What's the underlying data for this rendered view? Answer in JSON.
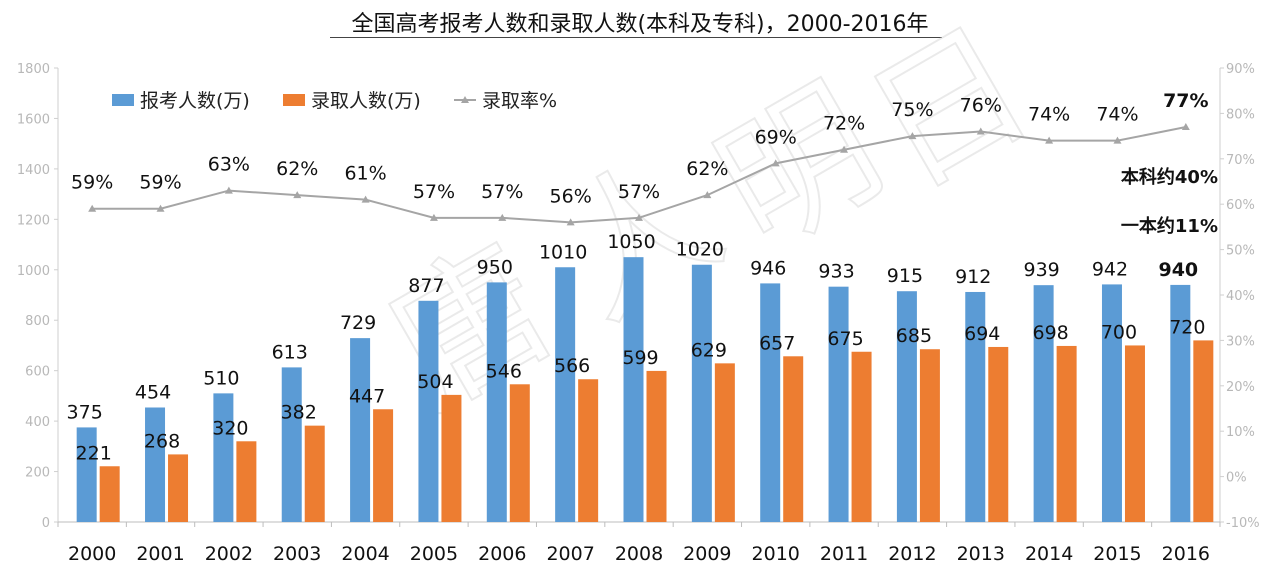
{
  "chart_data": {
    "type": "bar",
    "title": "全国高考报考人数和录取人数(本科及专科)，2000-2016年",
    "categories": [
      "2000",
      "2001",
      "2002",
      "2003",
      "2004",
      "2005",
      "2006",
      "2007",
      "2008",
      "2009",
      "2010",
      "2011",
      "2012",
      "2013",
      "2014",
      "2015",
      "2016"
    ],
    "series": [
      {
        "name": "报考人数(万)",
        "kind": "bar",
        "axis": "left",
        "color": "#5b9bd5",
        "values": [
          375,
          454,
          510,
          613,
          729,
          877,
          950,
          1010,
          1050,
          1020,
          946,
          933,
          915,
          912,
          939,
          942,
          940
        ],
        "labels": [
          "375",
          "454",
          "510",
          "613",
          "729",
          "877",
          "950",
          "1010",
          "1050",
          "1020",
          "946",
          "933",
          "915",
          "912",
          "939",
          "942",
          "940"
        ]
      },
      {
        "name": "录取人数(万)",
        "kind": "bar",
        "axis": "left",
        "color": "#ed7d31",
        "values": [
          221,
          268,
          320,
          382,
          447,
          504,
          546,
          566,
          599,
          629,
          657,
          675,
          685,
          694,
          698,
          700,
          720
        ],
        "labels": [
          "221",
          "268",
          "320",
          "382",
          "447",
          "504",
          "546",
          "566",
          "599",
          "629",
          "657",
          "675",
          "685",
          "694",
          "698",
          "700",
          "720"
        ]
      },
      {
        "name": "录取率%",
        "kind": "line",
        "axis": "right",
        "color": "#a5a5a5",
        "values": [
          59,
          59,
          63,
          62,
          61,
          57,
          57,
          56,
          57,
          62,
          69,
          72,
          75,
          76,
          74,
          74,
          77
        ],
        "labels": [
          "59%",
          "59%",
          "63%",
          "62%",
          "61%",
          "57%",
          "57%",
          "56%",
          "57%",
          "62%",
          "69%",
          "72%",
          "75%",
          "76%",
          "74%",
          "74%",
          "77%"
        ]
      }
    ],
    "y_left": {
      "range": [
        0,
        1800
      ],
      "ticks": [
        "0",
        "200",
        "400",
        "600",
        "800",
        "1000",
        "1200",
        "1400",
        "1600",
        "1800"
      ]
    },
    "y_right": {
      "range": [
        -10,
        90
      ],
      "ticks": [
        "-10%",
        "0%",
        "10%",
        "20%",
        "30%",
        "40%",
        "50%",
        "60%",
        "70%",
        "80%",
        "90%"
      ]
    },
    "grid": false,
    "legend_position": "top-left",
    "annotations": [
      "本科约40%",
      "一本约11%"
    ],
    "watermark": "唐人明日"
  }
}
